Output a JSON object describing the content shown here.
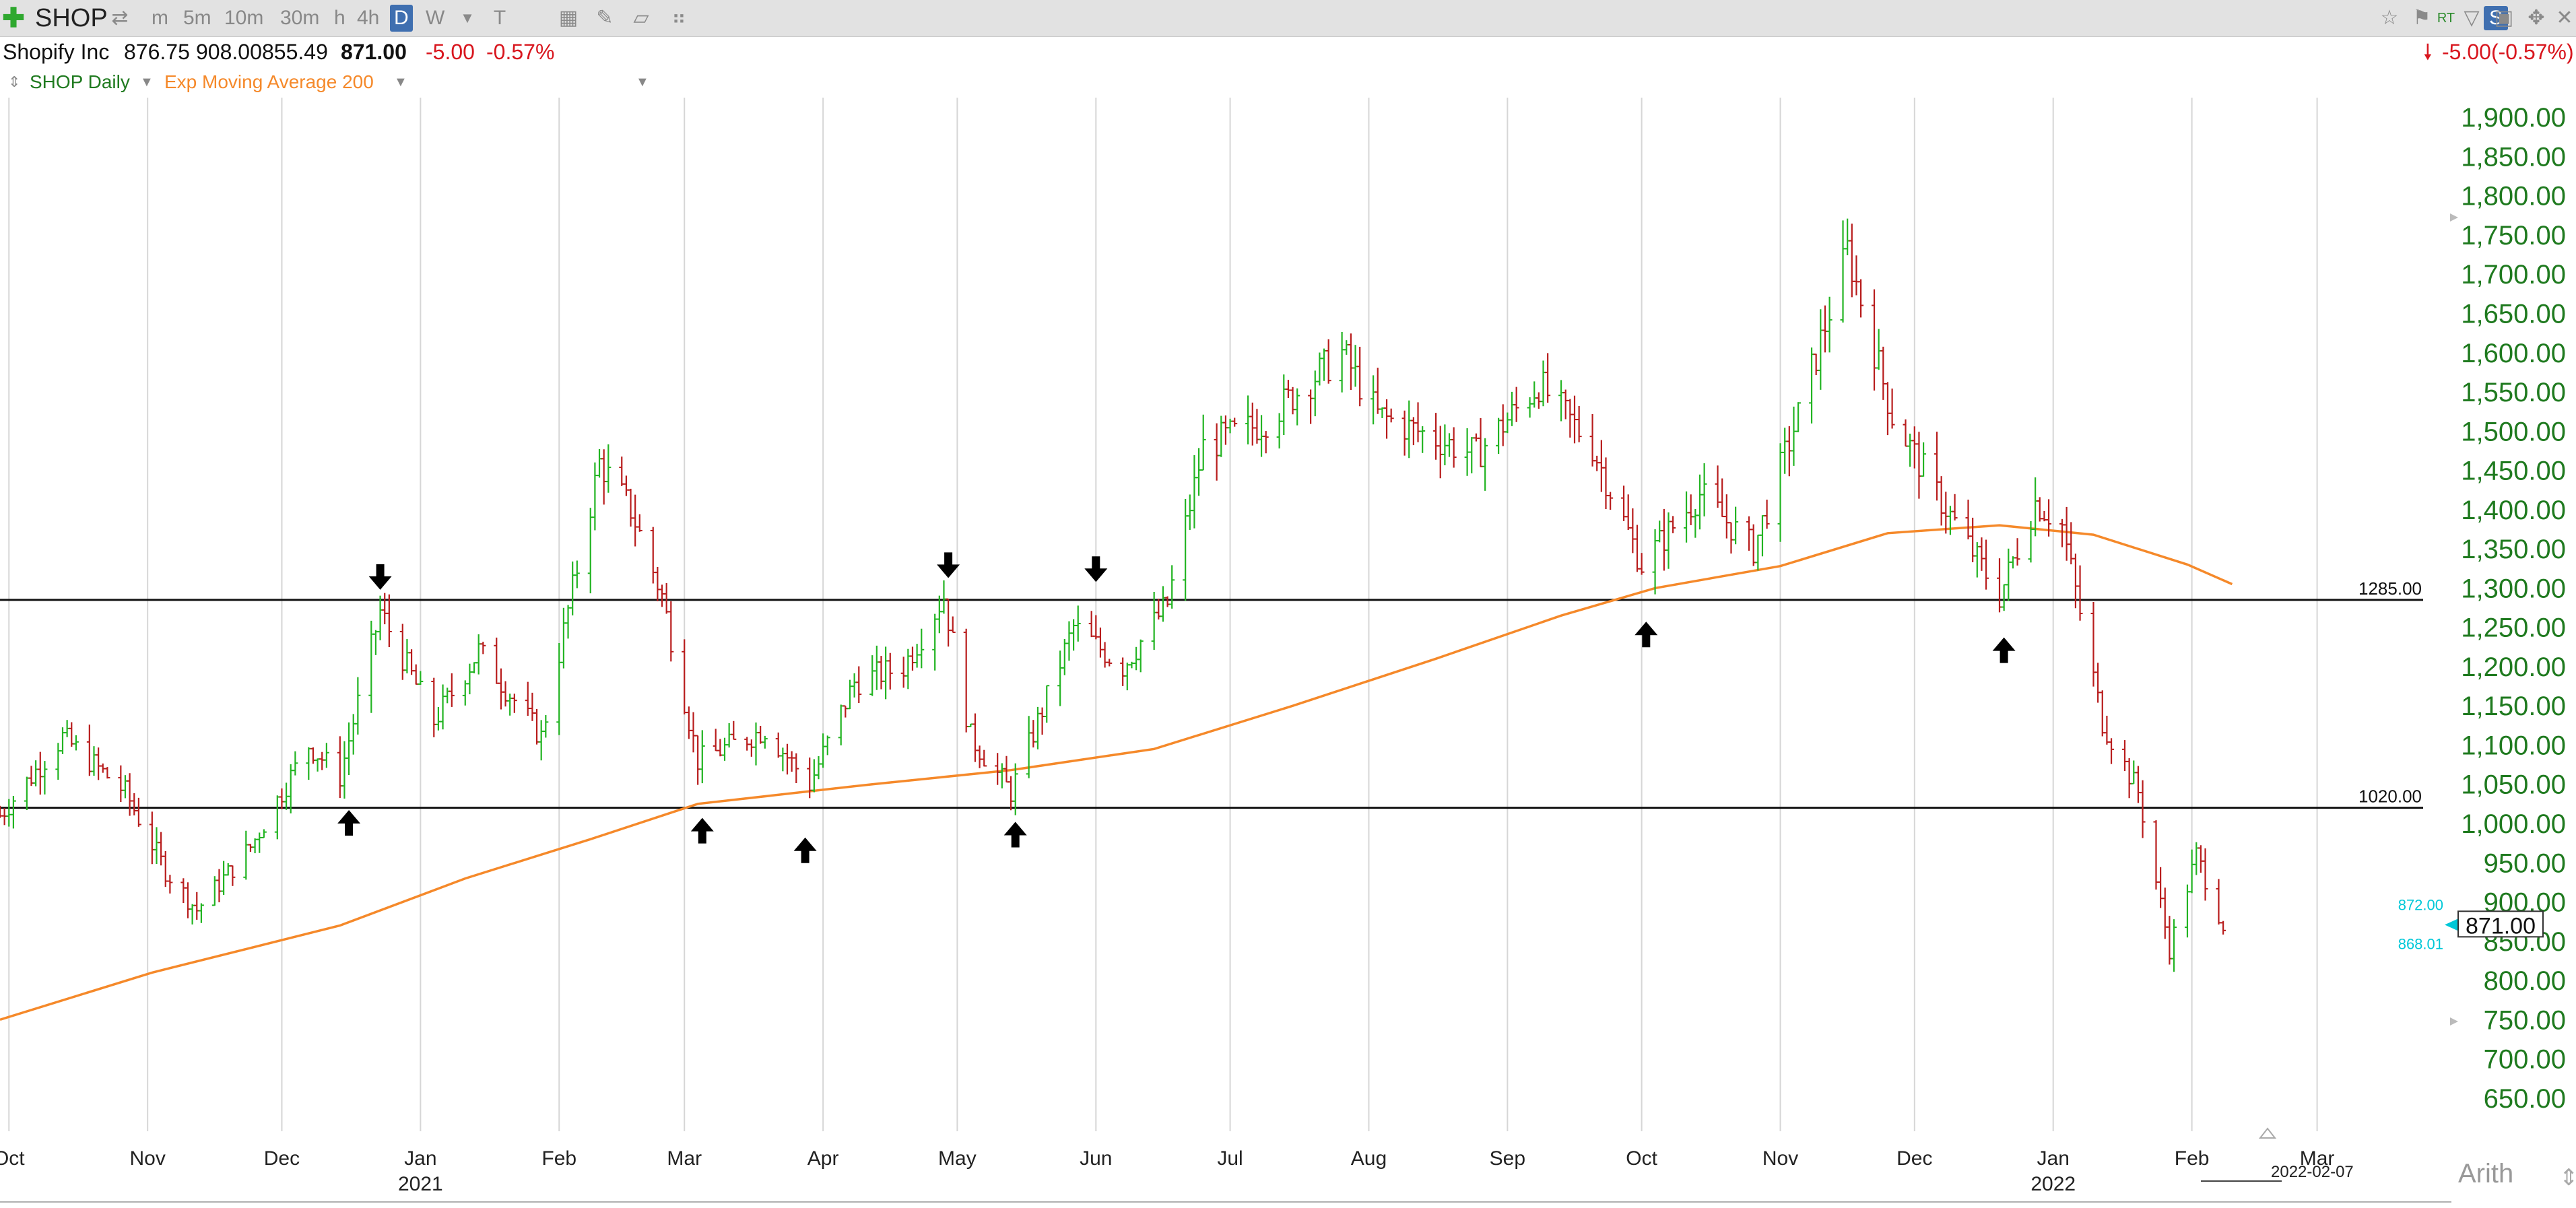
{
  "toolbar": {
    "symbol": "SHOP",
    "intervals": [
      "m",
      "5m",
      "10m",
      "30m",
      "h",
      "4h",
      "D",
      "W"
    ],
    "active_interval": "D"
  },
  "quote": {
    "name": "Shopify Inc",
    "open": "876.75",
    "high": "908.00",
    "low": "855.49",
    "last": "871.00",
    "change": "-5.00",
    "change_pct": "-0.57%",
    "right_change": "-5.00(-0.57%)"
  },
  "legend": {
    "series": "SHOP Daily",
    "indicator": "Exp Moving Average 200"
  },
  "footer": {
    "date_marker": "2022-02-07",
    "scale_mode": "Arith"
  },
  "colors": {
    "up": "#22b422",
    "down": "#b81c1c",
    "ema": "#f5892a",
    "axis_price": "#1f7a1f",
    "price_marker_high": "#00c8d8"
  },
  "chart_data": {
    "type": "ohlc",
    "symbol": "SHOP",
    "interval": "Daily",
    "ylim": [
      625,
      1925
    ],
    "y_ticks": [
      650,
      700,
      750,
      800,
      850,
      900,
      950,
      1000,
      1050,
      1100,
      1150,
      1200,
      1250,
      1300,
      1350,
      1400,
      1450,
      1500,
      1550,
      1600,
      1650,
      1700,
      1750,
      1800,
      1850,
      1900
    ],
    "y_tick_labels": [
      "650.00",
      "700.00",
      "750.00",
      "800.00",
      "850.00",
      "900.00",
      "950.00",
      "1,000.00",
      "1,050.00",
      "1,100.00",
      "1,150.00",
      "1,200.00",
      "1,250.00",
      "1,300.00",
      "1,350.00",
      "1,400.00",
      "1,450.00",
      "1,500.00",
      "1,550.00",
      "1,600.00",
      "1,650.00",
      "1,700.00",
      "1,750.00",
      "1,800.00",
      "1,850.00",
      "1,900.00"
    ],
    "x_months": [
      {
        "label": "Oct",
        "date": "2020-10-01"
      },
      {
        "label": "Nov",
        "date": "2020-11-01"
      },
      {
        "label": "Dec",
        "date": "2020-12-01"
      },
      {
        "label": "Jan",
        "date": "2021-01-01",
        "year": "2021"
      },
      {
        "label": "Feb",
        "date": "2021-02-01"
      },
      {
        "label": "Mar",
        "date": "2021-03-01"
      },
      {
        "label": "Apr",
        "date": "2021-04-01"
      },
      {
        "label": "May",
        "date": "2021-05-01"
      },
      {
        "label": "Jun",
        "date": "2021-06-01"
      },
      {
        "label": "Jul",
        "date": "2021-07-01"
      },
      {
        "label": "Aug",
        "date": "2021-08-01"
      },
      {
        "label": "Sep",
        "date": "2021-09-01"
      },
      {
        "label": "Oct",
        "date": "2021-10-01"
      },
      {
        "label": "Nov",
        "date": "2021-11-01"
      },
      {
        "label": "Dec",
        "date": "2021-12-01"
      },
      {
        "label": "Jan",
        "date": "2022-01-01",
        "year": "2022"
      },
      {
        "label": "Feb",
        "date": "2022-02-01"
      },
      {
        "label": "Mar",
        "date": "2022-03-01"
      }
    ],
    "x_start": "2020-09-29",
    "x_end": "2022-03-25",
    "last_date": "2022-02-08",
    "price_path": [
      [
        "2020-09-29",
        1010
      ],
      [
        "2020-10-13",
        1110
      ],
      [
        "2020-10-27",
        1040
      ],
      [
        "2020-11-05",
        940
      ],
      [
        "2020-11-12",
        890
      ],
      [
        "2020-11-24",
        970
      ],
      [
        "2020-12-07",
        1100
      ],
      [
        "2020-12-14",
        1060
      ],
      [
        "2020-12-23",
        1270
      ],
      [
        "2021-01-04",
        1130
      ],
      [
        "2021-01-14",
        1220
      ],
      [
        "2021-01-28",
        1110
      ],
      [
        "2021-02-10",
        1460
      ],
      [
        "2021-02-17",
        1400
      ],
      [
        "2021-02-24",
        1290
      ],
      [
        "2021-03-04",
        1080
      ],
      [
        "2021-03-19",
        1120
      ],
      [
        "2021-03-29",
        1050
      ],
      [
        "2021-04-08",
        1180
      ],
      [
        "2021-04-19",
        1200
      ],
      [
        "2021-04-28",
        1290
      ],
      [
        "2021-05-04",
        1110
      ],
      [
        "2021-05-13",
        1040
      ],
      [
        "2021-05-27",
        1250
      ],
      [
        "2021-06-07",
        1200
      ],
      [
        "2021-06-17",
        1280
      ],
      [
        "2021-06-25",
        1480
      ],
      [
        "2021-07-08",
        1510
      ],
      [
        "2021-07-26",
        1600
      ],
      [
        "2021-08-03",
        1520
      ],
      [
        "2021-08-25",
        1470
      ],
      [
        "2021-09-08",
        1560
      ],
      [
        "2021-09-20",
        1480
      ],
      [
        "2021-10-01",
        1330
      ],
      [
        "2021-10-14",
        1420
      ],
      [
        "2021-10-26",
        1350
      ],
      [
        "2021-11-05",
        1520
      ],
      [
        "2021-11-16",
        1730
      ],
      [
        "2021-11-26",
        1520
      ],
      [
        "2021-12-06",
        1420
      ],
      [
        "2021-12-20",
        1290
      ],
      [
        "2021-12-28",
        1410
      ],
      [
        "2022-01-03",
        1380
      ],
      [
        "2022-01-12",
        1130
      ],
      [
        "2022-01-20",
        1040
      ],
      [
        "2022-01-27",
        840
      ],
      [
        "2022-02-02",
        960
      ],
      [
        "2022-02-08",
        871
      ]
    ],
    "levels": [
      {
        "value": 1285,
        "label": "1285.00"
      },
      {
        "value": 1020,
        "label": "1020.00"
      }
    ],
    "ema200_path": [
      [
        "2020-09-29",
        750
      ],
      [
        "2020-11-02",
        810
      ],
      [
        "2020-12-14",
        870
      ],
      [
        "2021-01-11",
        930
      ],
      [
        "2021-02-08",
        980
      ],
      [
        "2021-03-04",
        1025
      ],
      [
        "2021-04-12",
        1050
      ],
      [
        "2021-05-13",
        1068
      ],
      [
        "2021-06-14",
        1095
      ],
      [
        "2021-07-15",
        1150
      ],
      [
        "2021-08-16",
        1210
      ],
      [
        "2021-09-13",
        1265
      ],
      [
        "2021-10-04",
        1300
      ],
      [
        "2021-11-01",
        1328
      ],
      [
        "2021-11-25",
        1370
      ],
      [
        "2021-12-20",
        1380
      ],
      [
        "2022-01-10",
        1368
      ],
      [
        "2022-01-31",
        1330
      ],
      [
        "2022-02-10",
        1305
      ]
    ],
    "arrows": [
      {
        "date": "2020-12-16",
        "price": 1000,
        "dir": "up"
      },
      {
        "date": "2020-12-23",
        "price": 1315,
        "dir": "down"
      },
      {
        "date": "2021-03-05",
        "price": 990,
        "dir": "up"
      },
      {
        "date": "2021-03-28",
        "price": 965,
        "dir": "up"
      },
      {
        "date": "2021-04-29",
        "price": 1330,
        "dir": "down"
      },
      {
        "date": "2021-05-14",
        "price": 985,
        "dir": "up"
      },
      {
        "date": "2021-06-01",
        "price": 1325,
        "dir": "down"
      },
      {
        "date": "2021-10-02",
        "price": 1240,
        "dir": "up"
      },
      {
        "date": "2021-12-21",
        "price": 1220,
        "dir": "up"
      }
    ],
    "price_markers": {
      "high": "872.00",
      "last": "871.00",
      "low": "868.01"
    }
  }
}
